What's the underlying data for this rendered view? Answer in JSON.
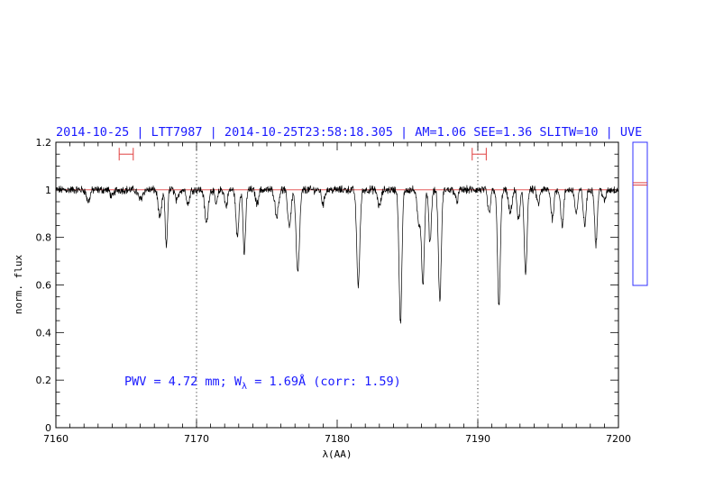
{
  "chart_data": {
    "type": "line",
    "title": "2014-10-25 | LTT7987 | 2014-10-25T23:58:18.305 | AM=1.06  SEE=1.36  SLITW=10 | UVE",
    "xlabel": "λ(AA)",
    "ylabel": "norm. flux",
    "xlim": [
      7160,
      7200
    ],
    "ylim": [
      0,
      1.2
    ],
    "x_ticks": [
      7160,
      7170,
      7180,
      7190,
      7200
    ],
    "y_ticks": [
      0,
      0.2,
      0.4,
      0.6,
      0.8,
      1,
      1.2
    ],
    "y_tick_labels": [
      "0",
      "0.2",
      "0.4",
      "0.6",
      "0.8",
      "1",
      "1.2"
    ],
    "continuum_level": 1.0,
    "vertical_markers": [
      7170,
      7190
    ],
    "continuum_windows": [
      [
        7164.5,
        7165.5
      ],
      [
        7189.6,
        7190.6
      ]
    ],
    "continuum_window_y": 1.15,
    "annotation": {
      "pre": "PWV = 4.72 mm; W",
      "sub": "λ",
      "post": " = 1.69Å (corr: 1.59)"
    },
    "absorption_lines": [
      {
        "center": 7162.3,
        "depth": 0.05,
        "width": 0.12
      },
      {
        "center": 7164.0,
        "depth": 0.03,
        "width": 0.12
      },
      {
        "center": 7166.0,
        "depth": 0.04,
        "width": 0.15
      },
      {
        "center": 7167.4,
        "depth": 0.12,
        "width": 0.12
      },
      {
        "center": 7167.85,
        "depth": 0.24,
        "width": 0.08
      },
      {
        "center": 7168.6,
        "depth": 0.05,
        "width": 0.1
      },
      {
        "center": 7169.4,
        "depth": 0.06,
        "width": 0.1
      },
      {
        "center": 7170.7,
        "depth": 0.14,
        "width": 0.12
      },
      {
        "center": 7171.4,
        "depth": 0.06,
        "width": 0.1
      },
      {
        "center": 7172.1,
        "depth": 0.07,
        "width": 0.1
      },
      {
        "center": 7172.9,
        "depth": 0.2,
        "width": 0.1
      },
      {
        "center": 7173.4,
        "depth": 0.27,
        "width": 0.09
      },
      {
        "center": 7174.3,
        "depth": 0.06,
        "width": 0.1
      },
      {
        "center": 7175.7,
        "depth": 0.11,
        "width": 0.12
      },
      {
        "center": 7176.6,
        "depth": 0.15,
        "width": 0.12
      },
      {
        "center": 7177.2,
        "depth": 0.35,
        "width": 0.12
      },
      {
        "center": 7179.0,
        "depth": 0.06,
        "width": 0.1
      },
      {
        "center": 7181.5,
        "depth": 0.4,
        "width": 0.11
      },
      {
        "center": 7183.0,
        "depth": 0.07,
        "width": 0.12
      },
      {
        "center": 7184.5,
        "depth": 0.56,
        "width": 0.1
      },
      {
        "center": 7185.8,
        "depth": 0.14,
        "width": 0.12
      },
      {
        "center": 7186.1,
        "depth": 0.39,
        "width": 0.1
      },
      {
        "center": 7186.6,
        "depth": 0.22,
        "width": 0.09
      },
      {
        "center": 7187.3,
        "depth": 0.47,
        "width": 0.1
      },
      {
        "center": 7188.5,
        "depth": 0.05,
        "width": 0.1
      },
      {
        "center": 7190.8,
        "depth": 0.1,
        "width": 0.1
      },
      {
        "center": 7191.5,
        "depth": 0.49,
        "width": 0.1
      },
      {
        "center": 7192.3,
        "depth": 0.1,
        "width": 0.12
      },
      {
        "center": 7192.9,
        "depth": 0.13,
        "width": 0.1
      },
      {
        "center": 7193.4,
        "depth": 0.35,
        "width": 0.1
      },
      {
        "center": 7194.3,
        "depth": 0.06,
        "width": 0.1
      },
      {
        "center": 7195.3,
        "depth": 0.12,
        "width": 0.1
      },
      {
        "center": 7196.0,
        "depth": 0.15,
        "width": 0.1
      },
      {
        "center": 7197.0,
        "depth": 0.1,
        "width": 0.1
      },
      {
        "center": 7197.6,
        "depth": 0.15,
        "width": 0.1
      },
      {
        "center": 7198.4,
        "depth": 0.23,
        "width": 0.09
      },
      {
        "center": 7199.0,
        "depth": 0.05,
        "width": 0.1
      }
    ],
    "side_panel": {
      "marker_levels": [
        1.02,
        1.03
      ]
    },
    "colors": {
      "title": "#1a1aff",
      "annotation": "#1a1aff",
      "spectrum": "#000000",
      "continuum": "#e04040",
      "windows": "#e04040",
      "side_panel_box": "#3030ff",
      "side_panel_markers": "#e04040"
    }
  }
}
